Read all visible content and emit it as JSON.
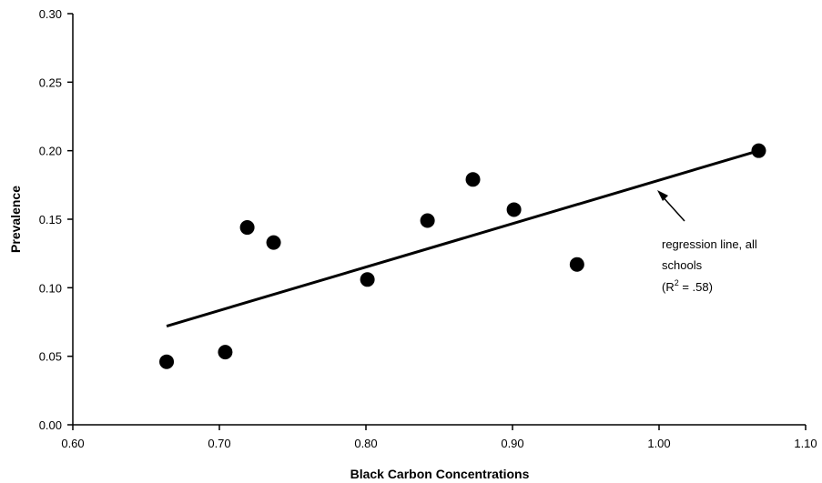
{
  "chart_data": {
    "type": "scatter",
    "title": "",
    "xlabel": "Black Carbon Concentrations",
    "ylabel": "Prevalence",
    "xlim": [
      0.6,
      1.1
    ],
    "ylim": [
      0.0,
      0.3
    ],
    "x_ticks": [
      "0.60",
      "0.70",
      "0.80",
      "0.90",
      "1.00",
      "1.10"
    ],
    "y_ticks": [
      "0.00",
      "0.05",
      "0.10",
      "0.15",
      "0.20",
      "0.25",
      "0.30"
    ],
    "grid": false,
    "points": [
      {
        "x": 0.664,
        "y": 0.046
      },
      {
        "x": 0.704,
        "y": 0.053
      },
      {
        "x": 0.719,
        "y": 0.144
      },
      {
        "x": 0.737,
        "y": 0.133
      },
      {
        "x": 0.801,
        "y": 0.106
      },
      {
        "x": 0.842,
        "y": 0.149
      },
      {
        "x": 0.873,
        "y": 0.179
      },
      {
        "x": 0.901,
        "y": 0.157
      },
      {
        "x": 0.944,
        "y": 0.117
      },
      {
        "x": 1.068,
        "y": 0.2
      }
    ],
    "regression_line": {
      "x": [
        0.664,
        1.068
      ],
      "y": [
        0.072,
        0.2
      ]
    },
    "annotation": {
      "lines": [
        "regression line, all",
        "schools"
      ],
      "r2_prefix": "(R",
      "r2_sup": "2",
      "r2_suffix": " = .58)"
    }
  }
}
